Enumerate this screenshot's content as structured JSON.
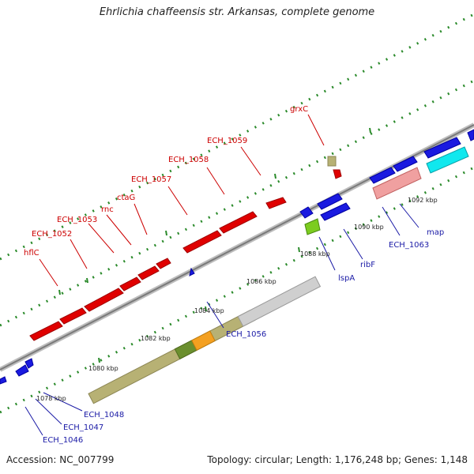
{
  "title": "Ehrlichia chaffeensis str. Arkansas, complete genome",
  "footer": {
    "accession": "Accession: NC_007799",
    "summary": "Topology: circular; Length: 1,176,248 bp; Genes: 1,148"
  },
  "colors": {
    "forward_label": "#cc0000",
    "reverse_label": "#1a1aa6",
    "backbone": "#999999",
    "dots": "#2a8a2a"
  },
  "kbp_labels": [
    "1078 kbp",
    "1080 kbp",
    "1082 kbp",
    "1084 kbp",
    "1086 kbp",
    "1088 kbp",
    "1090 kbp",
    "1092 kbp"
  ],
  "gene_labels": [
    {
      "text": "grxC",
      "strand": "forward"
    },
    {
      "text": "ECH_1059",
      "strand": "forward"
    },
    {
      "text": "ECH_1058",
      "strand": "forward"
    },
    {
      "text": "ECH_1057",
      "strand": "forward"
    },
    {
      "text": "ctaG",
      "strand": "forward"
    },
    {
      "text": "rnc",
      "strand": "forward"
    },
    {
      "text": "ECH_1053",
      "strand": "forward"
    },
    {
      "text": "ECH_1052",
      "strand": "forward"
    },
    {
      "text": "hflC",
      "strand": "forward"
    },
    {
      "text": "map",
      "strand": "reverse"
    },
    {
      "text": "ECH_1063",
      "strand": "reverse"
    },
    {
      "text": "ribF",
      "strand": "reverse"
    },
    {
      "text": "lspA",
      "strand": "reverse"
    },
    {
      "text": "ECH_1056",
      "strand": "reverse"
    },
    {
      "text": "ECH_1048",
      "strand": "reverse"
    },
    {
      "text": "ECH_1047",
      "strand": "reverse"
    },
    {
      "text": "ECH_1046",
      "strand": "reverse"
    }
  ]
}
